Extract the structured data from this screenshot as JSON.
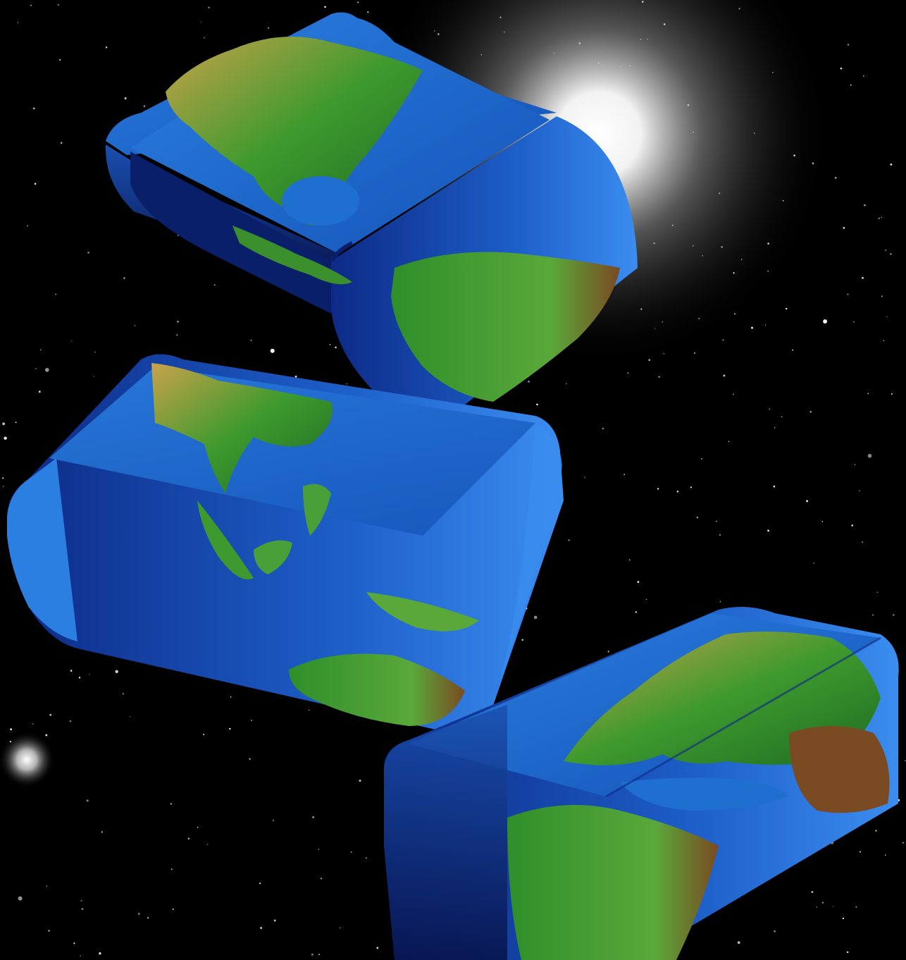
{
  "scene": {
    "description_free": true,
    "colors": {
      "space": "#000000",
      "ocean": "#1f6fd0",
      "ocean_dark": "#0a1f6a",
      "land_green": "#2f8f2a",
      "land_tan": "#c9a24a",
      "land_brown": "#7a4a22",
      "glow": "#ffffff"
    },
    "objects": [
      "star-field",
      "bright-star-glow",
      "small-star-glow",
      "earth-block-americas",
      "earth-block-asia-australia",
      "earth-block-europe-africa"
    ]
  }
}
